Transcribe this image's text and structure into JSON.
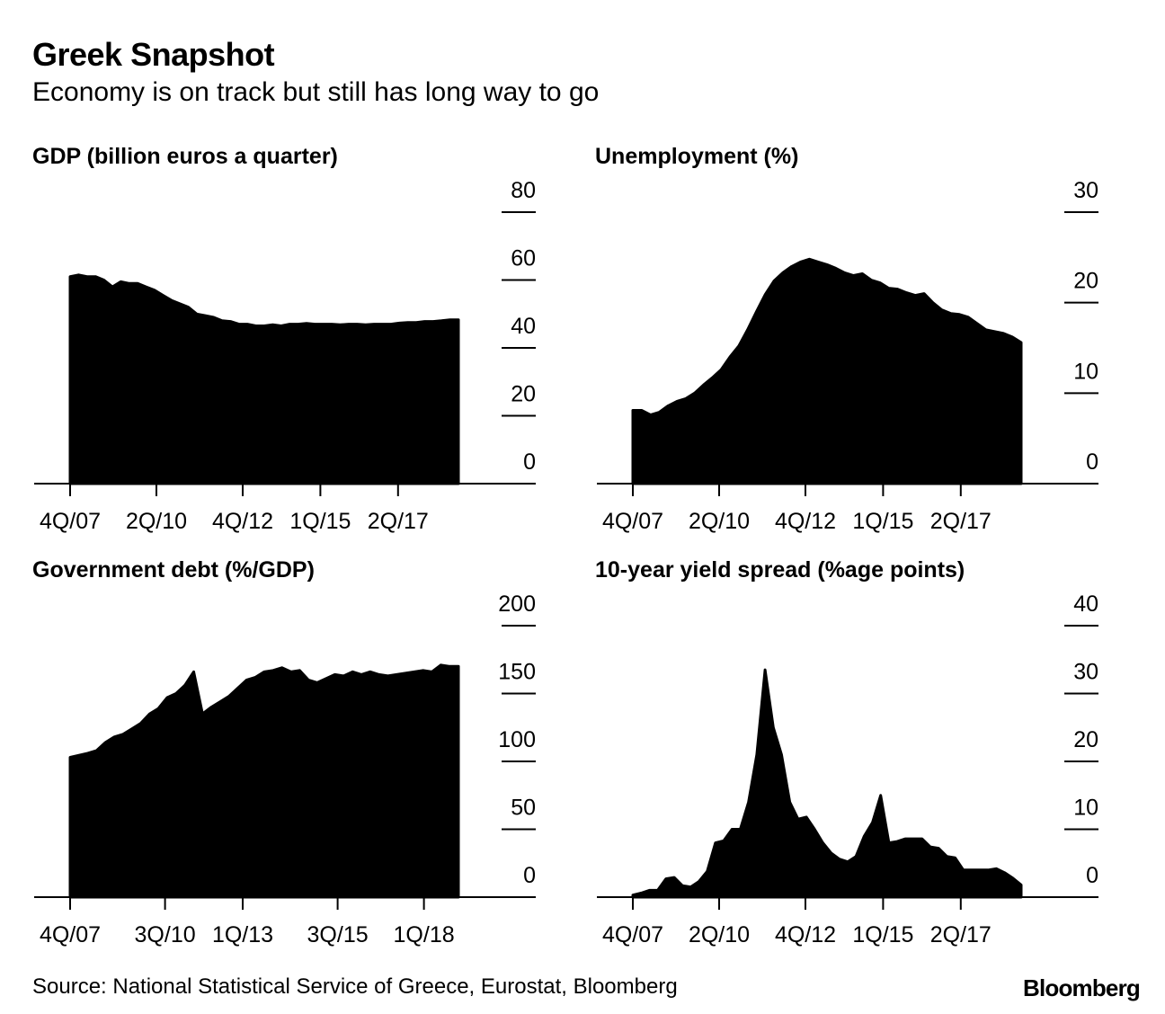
{
  "header": {
    "title": "Greek Snapshot",
    "subtitle": "Economy is on track but still has long way to go"
  },
  "footer": {
    "source": "Source: National Statistical Service of Greece, Eurostat, Bloomberg",
    "brand": "Bloomberg"
  },
  "chart_data": [
    {
      "type": "area",
      "title": "GDP (billion euros a quarter)",
      "xlabel": "",
      "ylabel": "",
      "ylim": [
        0,
        80
      ],
      "yticks": [
        0,
        20,
        40,
        60,
        80
      ],
      "xlim": [
        0,
        45
      ],
      "xticks": [
        {
          "x": 0,
          "label": "4Q/07"
        },
        {
          "x": 10,
          "label": "2Q/10"
        },
        {
          "x": 20,
          "label": "4Q/12"
        },
        {
          "x": 29,
          "label": "1Q/15"
        },
        {
          "x": 38,
          "label": "2Q/17"
        }
      ],
      "series": [
        {
          "values": [
            61,
            61.5,
            61,
            61,
            60,
            58,
            59.5,
            59,
            59,
            58,
            57,
            55.5,
            54,
            53,
            52,
            50,
            49.5,
            49,
            48,
            47.8,
            47,
            47,
            46.5,
            46.5,
            46.8,
            46.5,
            47,
            47,
            47.2,
            47,
            47,
            47,
            46.8,
            47,
            47,
            46.8,
            47,
            47,
            47,
            47.3,
            47.5,
            47.5,
            47.8,
            47.8,
            48,
            48.3,
            48.3
          ]
        }
      ],
      "grid": false,
      "legend": "none"
    },
    {
      "type": "area",
      "title": "Unemployment (%)",
      "xlabel": "",
      "ylabel": "",
      "ylim": [
        0,
        30
      ],
      "yticks": [
        0,
        10,
        20,
        30
      ],
      "xlim": [
        0,
        45
      ],
      "xticks": [
        {
          "x": 0,
          "label": "4Q/07"
        },
        {
          "x": 10,
          "label": "2Q/10"
        },
        {
          "x": 20,
          "label": "4Q/12"
        },
        {
          "x": 29,
          "label": "1Q/15"
        },
        {
          "x": 38,
          "label": "2Q/17"
        }
      ],
      "series": [
        {
          "values": [
            8.1,
            8.1,
            7.6,
            7.9,
            8.6,
            9.1,
            9.4,
            10,
            10.9,
            11.7,
            12.6,
            14,
            15.2,
            17,
            19,
            20.9,
            22.4,
            23.3,
            24,
            24.5,
            24.8,
            24.5,
            24.2,
            23.8,
            23.3,
            23,
            23.2,
            22.5,
            22.2,
            21.6,
            21.5,
            21.1,
            20.8,
            21,
            20,
            19.2,
            18.8,
            18.7,
            18.4,
            17.7,
            17,
            16.8,
            16.6,
            16.2,
            15.6
          ]
        }
      ],
      "grid": false,
      "legend": "none"
    },
    {
      "type": "area",
      "title": "Government debt (%/GDP)",
      "xlabel": "",
      "ylabel": "",
      "ylim": [
        0,
        200
      ],
      "yticks": [
        0,
        50,
        100,
        150,
        200
      ],
      "xlim": [
        0,
        45
      ],
      "xticks": [
        {
          "x": 0,
          "label": "4Q/07"
        },
        {
          "x": 11,
          "label": "3Q/10"
        },
        {
          "x": 20,
          "label": "1Q/13"
        },
        {
          "x": 31,
          "label": "3Q/15"
        },
        {
          "x": 41,
          "label": "1Q/18"
        }
      ],
      "series": [
        {
          "values": [
            103,
            104.5,
            106,
            108,
            114,
            118,
            120,
            124,
            128,
            135,
            139,
            147,
            150,
            156,
            166,
            135,
            140,
            144,
            148,
            154,
            160,
            162,
            166,
            167,
            169,
            166,
            167,
            160,
            158,
            161,
            164,
            163,
            166,
            164,
            166,
            164,
            163,
            164,
            165,
            166,
            167,
            166,
            171,
            170,
            170
          ]
        }
      ],
      "grid": false,
      "legend": "none"
    },
    {
      "type": "area",
      "title": "10-year yield spread (%age points)",
      "xlabel": "",
      "ylabel": "",
      "ylim": [
        0,
        40
      ],
      "yticks": [
        0,
        10,
        20,
        30,
        40
      ],
      "xlim": [
        0,
        45
      ],
      "xticks": [
        {
          "x": 0,
          "label": "4Q/07"
        },
        {
          "x": 10,
          "label": "2Q/10"
        },
        {
          "x": 20,
          "label": "4Q/12"
        },
        {
          "x": 29,
          "label": "1Q/15"
        },
        {
          "x": 38,
          "label": "2Q/17"
        }
      ],
      "series": [
        {
          "values": [
            0.3,
            0.6,
            1,
            1,
            2.7,
            2.9,
            1.7,
            1.5,
            2.3,
            3.8,
            8,
            8.3,
            10,
            10,
            14,
            21,
            33.5,
            25,
            21,
            14,
            11.5,
            11.8,
            10,
            8,
            6.5,
            5.6,
            5.2,
            6,
            9,
            11,
            15,
            8,
            8.2,
            8.6,
            8.6,
            8.6,
            7.4,
            7.2,
            6,
            5.8,
            4,
            4,
            4,
            4,
            4.2,
            3.6,
            2.8,
            1.8
          ]
        }
      ],
      "grid": false,
      "legend": "none"
    }
  ]
}
